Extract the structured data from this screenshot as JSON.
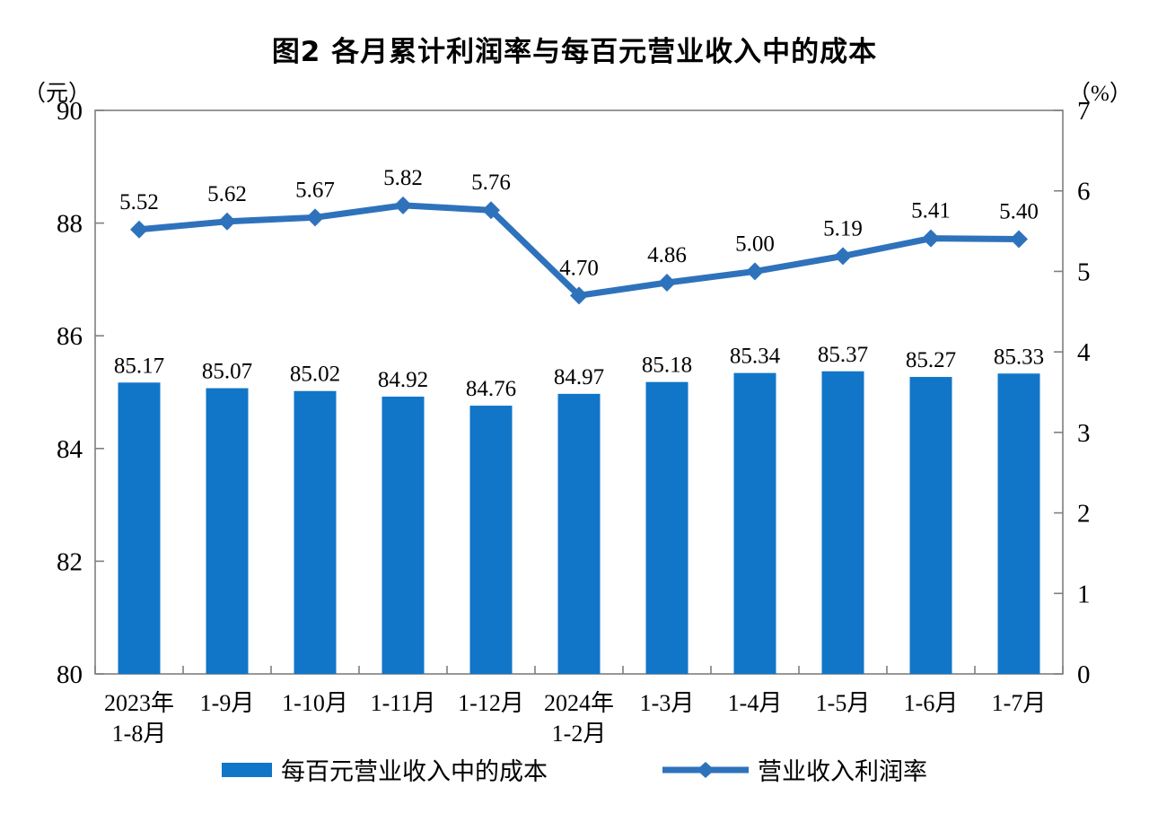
{
  "title": "图2 各月累计利润率与每百元营业收入中的成本",
  "left_axis_unit": "（元）",
  "right_axis_unit": "（%）",
  "legend": {
    "bar_label": "每百元营业收入中的成本",
    "line_label": "营业收入利润率"
  },
  "colors": {
    "bar": "#1176C8",
    "line": "#2F72BC",
    "axis": "#7F7F7F",
    "text": "#000000"
  },
  "chart_data": {
    "type": "combo",
    "title": "图2 各月累计利润率与每百元营业收入中的成本",
    "categories": [
      "2023年\n1-8月",
      "1-9月",
      "1-10月",
      "1-11月",
      "1-12月",
      "2024年\n1-2月",
      "1-3月",
      "1-4月",
      "1-5月",
      "1-6月",
      "1-7月"
    ],
    "series": [
      {
        "name": "每百元营业收入中的成本",
        "type": "bar",
        "axis": "left",
        "color": "#1176C8",
        "values": [
          85.17,
          85.07,
          85.02,
          84.92,
          84.76,
          84.97,
          85.18,
          85.34,
          85.37,
          85.27,
          85.33
        ]
      },
      {
        "name": "营业收入利润率",
        "type": "line",
        "axis": "right",
        "color": "#2F72BC",
        "marker": "diamond",
        "values": [
          5.52,
          5.62,
          5.67,
          5.82,
          5.76,
          4.7,
          4.86,
          5.0,
          5.19,
          5.41,
          5.4
        ]
      }
    ],
    "left_axis": {
      "unit": "（元）",
      "min": 80,
      "max": 90,
      "ticks": [
        80,
        82,
        84,
        86,
        88,
        90
      ]
    },
    "right_axis": {
      "unit": "（%）",
      "min": 0,
      "max": 7,
      "ticks": [
        0,
        1,
        2,
        3,
        4,
        5,
        6,
        7
      ]
    },
    "grid": false,
    "data_labels": true,
    "data_label_decimals": 2,
    "legend_position": "bottom"
  }
}
